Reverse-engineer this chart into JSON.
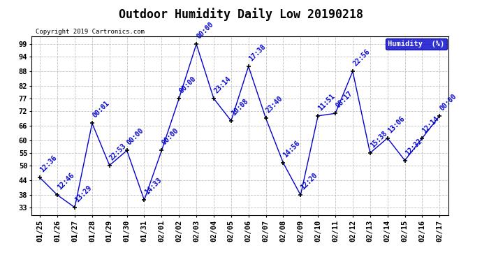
{
  "title": "Outdoor Humidity Daily Low 20190218",
  "copyright": "Copyright 2019 Cartronics.com",
  "legend_label": "Humidity  (%)",
  "x_labels": [
    "01/25",
    "01/26",
    "01/27",
    "01/28",
    "01/29",
    "01/30",
    "01/31",
    "02/01",
    "02/02",
    "02/03",
    "02/04",
    "02/05",
    "02/06",
    "02/07",
    "02/08",
    "02/09",
    "02/10",
    "02/11",
    "02/12",
    "02/13",
    "02/14",
    "02/15",
    "02/16",
    "02/17"
  ],
  "y_values": [
    45,
    38,
    33,
    67,
    50,
    56,
    36,
    56,
    77,
    99,
    77,
    68,
    90,
    69,
    51,
    38,
    70,
    71,
    88,
    55,
    61,
    52,
    61,
    70
  ],
  "point_labels": [
    "12:36",
    "12:46",
    "13:29",
    "00:01",
    "22:53",
    "00:00",
    "14:33",
    "00:00",
    "00:00",
    "00:00",
    "23:14",
    "10:08",
    "17:38",
    "23:40",
    "14:56",
    "12:20",
    "11:51",
    "08:17",
    "22:56",
    "15:38",
    "13:06",
    "12:32",
    "12:14",
    "00:00"
  ],
  "y_ticks": [
    33,
    38,
    44,
    50,
    55,
    60,
    66,
    72,
    77,
    82,
    88,
    94,
    99
  ],
  "ylim": [
    30,
    102
  ],
  "line_color": "#0000cc",
  "marker_color": "#000000",
  "bg_color": "#ffffff",
  "grid_color": "#bbbbbb",
  "title_fontsize": 12,
  "label_fontsize": 7,
  "tick_fontsize": 7.5,
  "legend_bg": "#0000cc",
  "legend_fg": "#ffffff"
}
